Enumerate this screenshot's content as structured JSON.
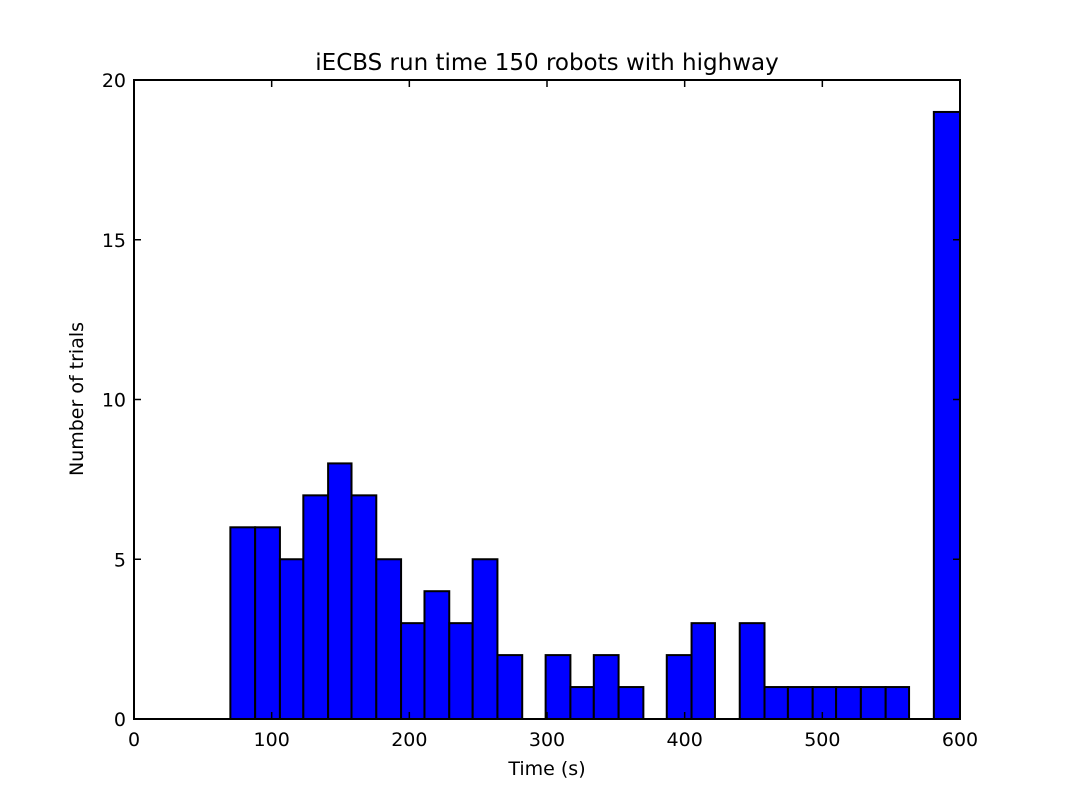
{
  "chart_data": {
    "type": "bar",
    "title": "iECBS run time 150 robots with highway",
    "xlabel": "Time (s)",
    "ylabel": "Number of trials",
    "xlim": [
      0,
      600
    ],
    "ylim": [
      0,
      20
    ],
    "xticks": [
      "0",
      "100",
      "200",
      "300",
      "400",
      "500",
      "600"
    ],
    "yticks": [
      "0",
      "5",
      "10",
      "15",
      "20"
    ],
    "grid": false,
    "bar_color": "#0000ff",
    "bins": [
      {
        "x0": 70,
        "x1": 88,
        "value": 6
      },
      {
        "x0": 88,
        "x1": 106,
        "value": 6
      },
      {
        "x0": 106,
        "x1": 123,
        "value": 5
      },
      {
        "x0": 123,
        "x1": 141,
        "value": 7
      },
      {
        "x0": 141,
        "x1": 158,
        "value": 8
      },
      {
        "x0": 158,
        "x1": 176,
        "value": 7
      },
      {
        "x0": 176,
        "x1": 194,
        "value": 5
      },
      {
        "x0": 194,
        "x1": 211,
        "value": 3
      },
      {
        "x0": 211,
        "x1": 229,
        "value": 4
      },
      {
        "x0": 229,
        "x1": 246,
        "value": 3
      },
      {
        "x0": 246,
        "x1": 264,
        "value": 5
      },
      {
        "x0": 264,
        "x1": 282,
        "value": 2
      },
      {
        "x0": 299,
        "x1": 317,
        "value": 2
      },
      {
        "x0": 317,
        "x1": 334,
        "value": 1
      },
      {
        "x0": 334,
        "x1": 352,
        "value": 2
      },
      {
        "x0": 352,
        "x1": 370,
        "value": 1
      },
      {
        "x0": 387,
        "x1": 405,
        "value": 2
      },
      {
        "x0": 405,
        "x1": 422,
        "value": 3
      },
      {
        "x0": 440,
        "x1": 458,
        "value": 3
      },
      {
        "x0": 458,
        "x1": 475,
        "value": 1
      },
      {
        "x0": 475,
        "x1": 493,
        "value": 1
      },
      {
        "x0": 493,
        "x1": 510,
        "value": 1
      },
      {
        "x0": 510,
        "x1": 528,
        "value": 1
      },
      {
        "x0": 528,
        "x1": 546,
        "value": 1
      },
      {
        "x0": 546,
        "x1": 563,
        "value": 1
      },
      {
        "x0": 581,
        "x1": 600,
        "value": 19
      }
    ]
  }
}
